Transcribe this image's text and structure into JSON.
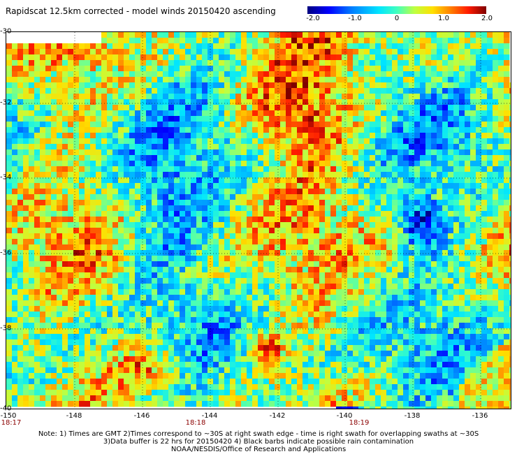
{
  "title": "Rapidscat 12.5km corrected - model winds 20150420 ascending",
  "colorbar": {
    "ticks": [
      "-2.0",
      "-1.0",
      "0",
      "1.0",
      "2.0"
    ]
  },
  "axes": {
    "x_ticks": [
      "-150",
      "-148",
      "-146",
      "-144",
      "-142",
      "-140",
      "-138",
      "-136"
    ],
    "y_ticks": [
      "-30",
      "-32",
      "-34",
      "-36",
      "-38",
      "-40"
    ]
  },
  "time_labels": [
    "18:17",
    "18:18",
    "18:19"
  ],
  "notes": [
    "Note: 1) Times are GMT 2)Times correspond to ~30S at right swath edge - time is right swath for overlapping swaths at ~30S",
    "3)Data buffer is 22 hrs for 20150420 4) Black barbs indicate possible rain contamination",
    "NOAA/NESDIS/Office of Research and Applications"
  ],
  "colors": {
    "dark_blue": "#00007f",
    "blue": "#0000ff",
    "cyan": "#00e5ff",
    "yellow": "#ffe000",
    "red": "#ff1a00",
    "dark_red": "#7f0000",
    "time_label": "#8b0000"
  }
}
